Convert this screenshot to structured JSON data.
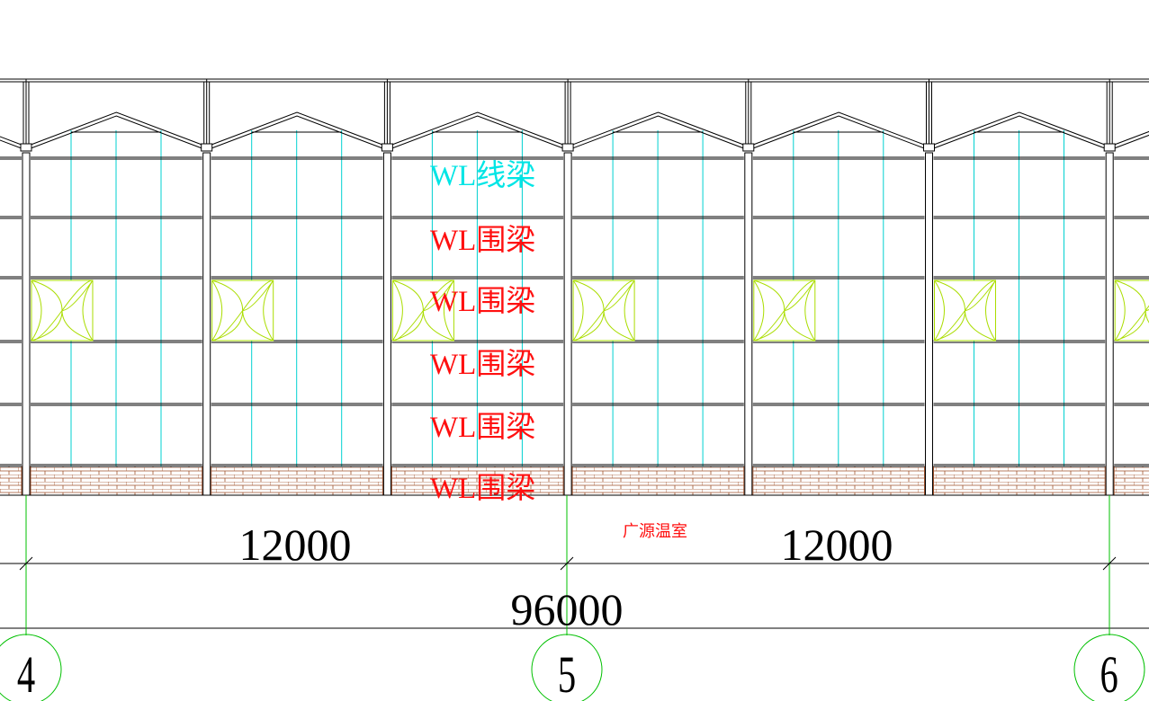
{
  "labels": [
    "WL线梁",
    "WL围梁",
    "WL围梁",
    "WL围梁",
    "WL围梁",
    "WL围梁"
  ],
  "dimensions": {
    "bay_left": "12000",
    "bay_right": "12000",
    "total": "96000"
  },
  "watermark": "广源温室",
  "axes": [
    "4",
    "5",
    "6"
  ]
}
